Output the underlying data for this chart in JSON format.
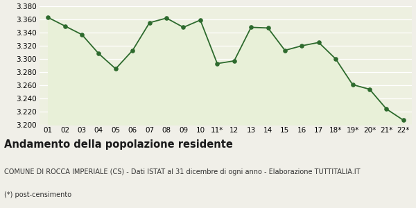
{
  "x_labels": [
    "01",
    "02",
    "03",
    "04",
    "05",
    "06",
    "07",
    "08",
    "09",
    "10",
    "11*",
    "12",
    "13",
    "14",
    "15",
    "16",
    "17",
    "18*",
    "19*",
    "20*",
    "21*",
    "22*"
  ],
  "y_values": [
    3363,
    3350,
    3337,
    3308,
    3285,
    3313,
    3355,
    3362,
    3348,
    3359,
    3293,
    3297,
    3348,
    3347,
    3313,
    3320,
    3325,
    3300,
    3261,
    3254,
    3224,
    3207
  ],
  "ylim": [
    3200,
    3380
  ],
  "yticks": [
    3200,
    3220,
    3240,
    3260,
    3280,
    3300,
    3320,
    3340,
    3360,
    3380
  ],
  "line_color": "#2d6a2d",
  "fill_color": "#e8f0d8",
  "marker_color": "#2d6a2d",
  "bg_color": "#f0efe8",
  "plot_bg_color": "#edf0e0",
  "title": "Andamento della popolazione residente",
  "subtitle": "COMUNE DI ROCCA IMPERIALE (CS) - Dati ISTAT al 31 dicembre di ogni anno - Elaborazione TUTTITALIA.IT",
  "footnote": "(*) post-censimento",
  "title_fontsize": 10.5,
  "subtitle_fontsize": 7.0,
  "footnote_fontsize": 7.0,
  "tick_fontsize": 7.5
}
